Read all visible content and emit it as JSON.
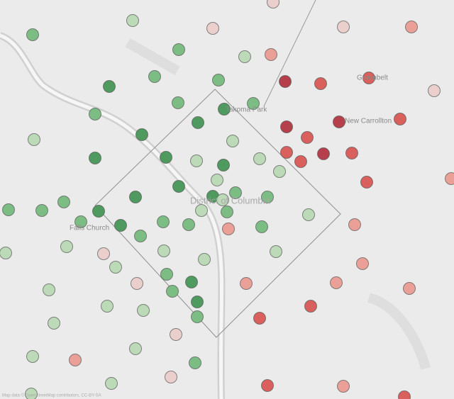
{
  "map": {
    "labels": [
      "Greenbelt",
      "New Carrollton",
      "Takoma Park",
      "District of Columbia",
      "Falls Church"
    ],
    "attribution": "Map data © OpenStreetMap contributors, CC-BY-SA"
  }
}
